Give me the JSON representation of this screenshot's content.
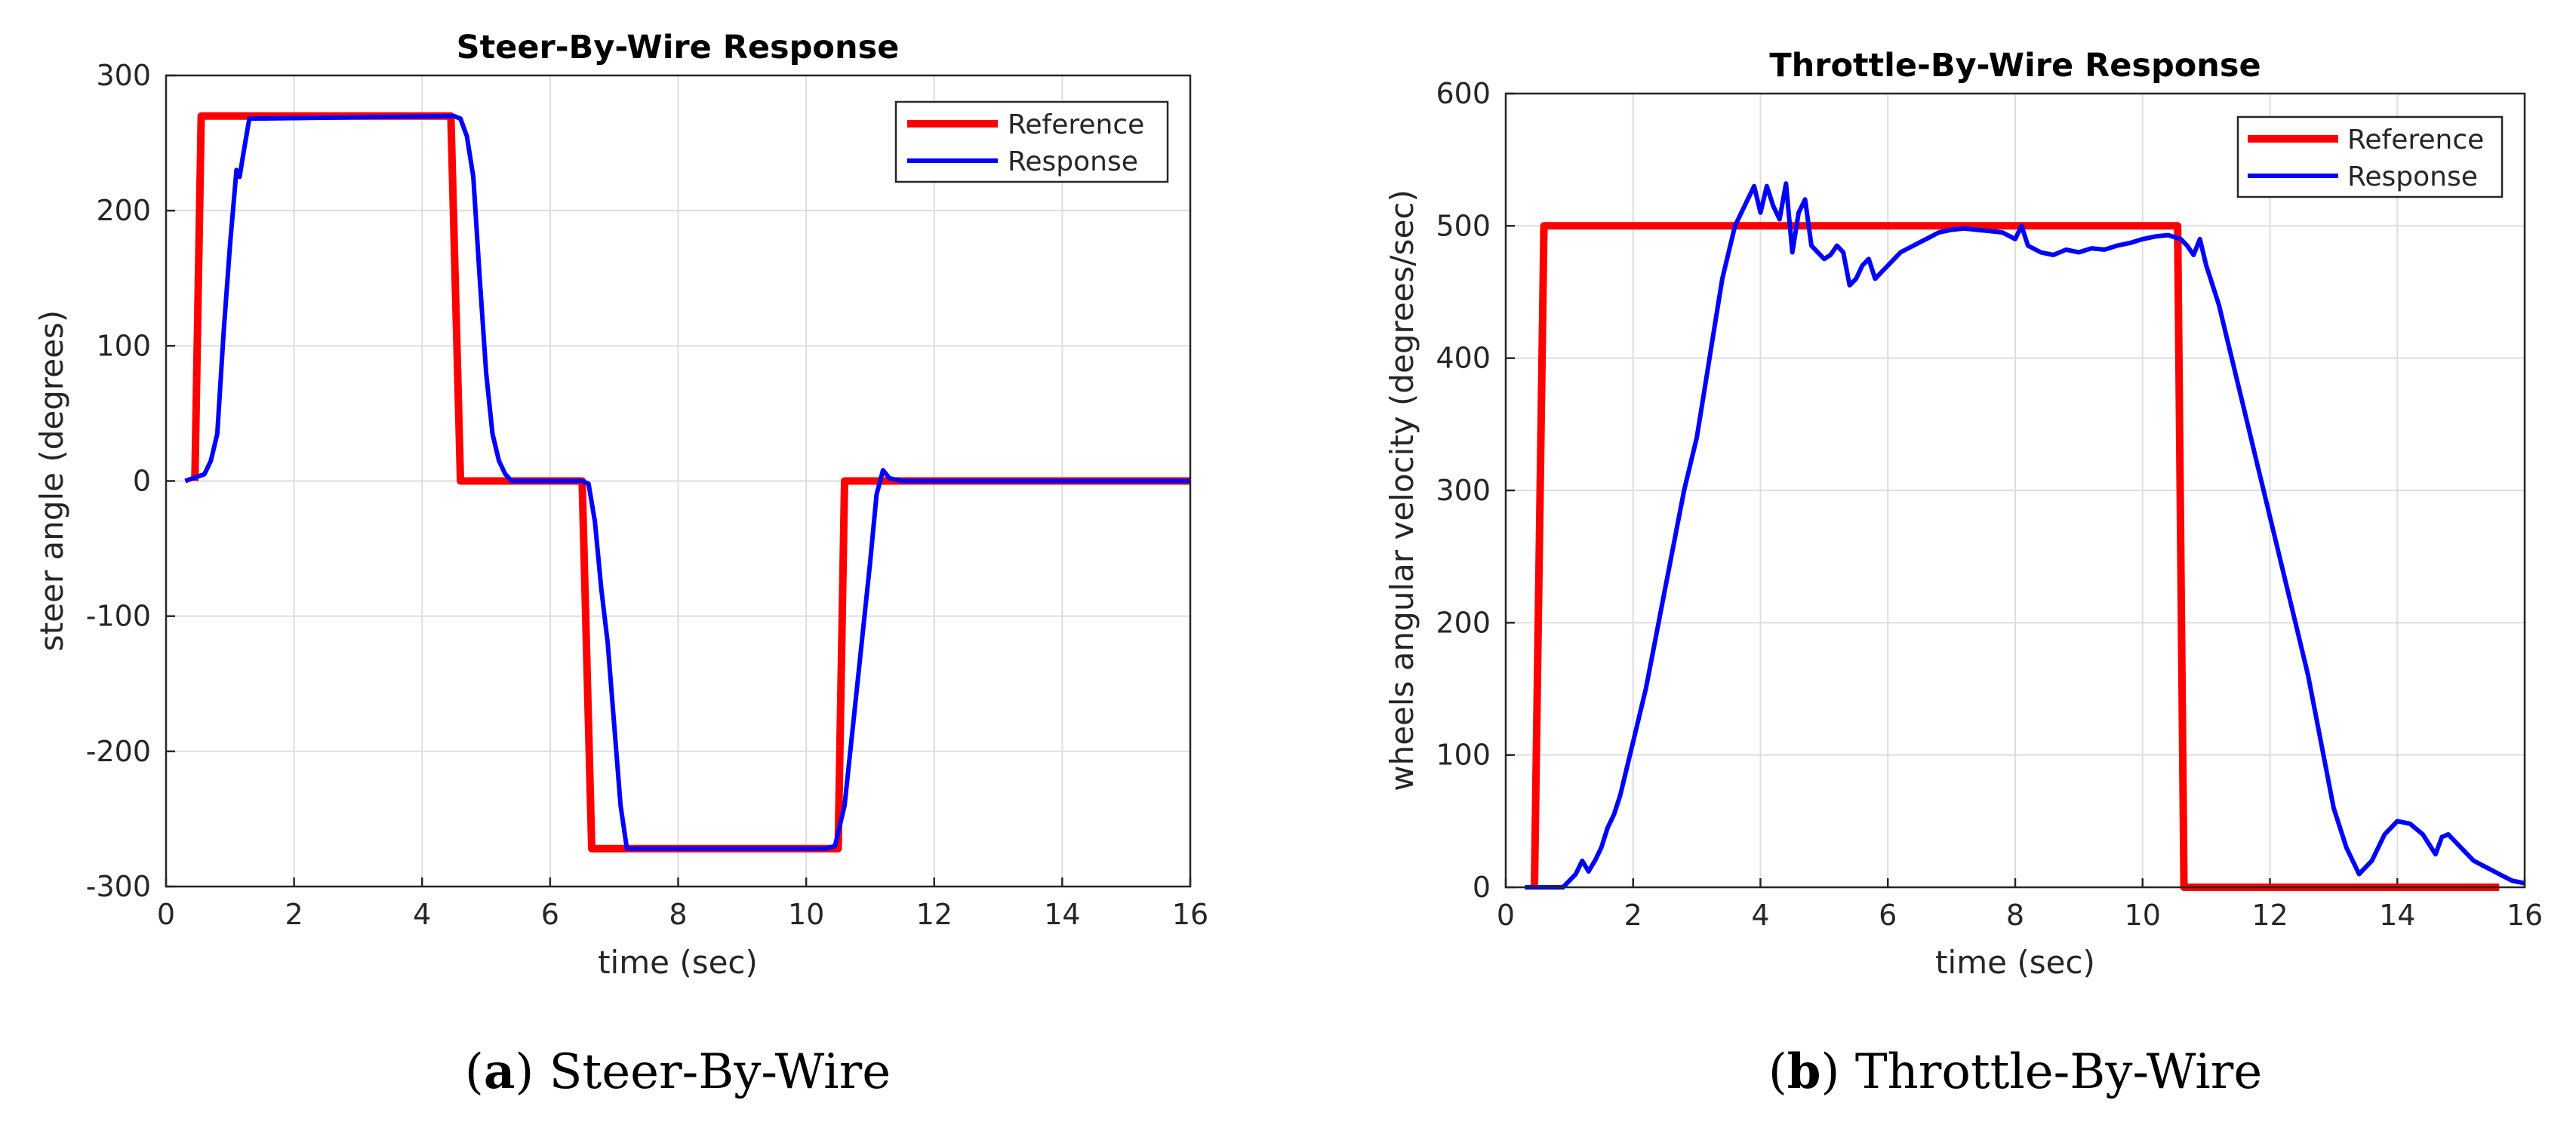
{
  "chart_data": [
    {
      "type": "line",
      "title": "Steer-By-Wire Response",
      "xlabel": "time (sec)",
      "ylabel": "steer angle (degrees)",
      "xlim": [
        0,
        16
      ],
      "ylim": [
        -300,
        300
      ],
      "xticks": [
        "0",
        "2",
        "4",
        "6",
        "8",
        "10",
        "12",
        "14",
        "16"
      ],
      "yticks": [
        "300",
        "200",
        "100",
        "0",
        "-100",
        "-200",
        "-300"
      ],
      "grid": true,
      "legend": "top-right",
      "series": [
        {
          "name": "Reference",
          "color": "#ff0000",
          "x": [
            0.45,
            0.55,
            4.45,
            4.6,
            6.5,
            6.65,
            10.5,
            10.6,
            16
          ],
          "y": [
            0,
            270,
            270,
            0,
            0,
            -272,
            -272,
            0,
            0
          ]
        },
        {
          "name": "Response",
          "color": "#0000ff",
          "x": [
            0.3,
            0.6,
            0.7,
            0.8,
            0.9,
            1.0,
            1.1,
            1.15,
            1.2,
            1.3,
            4.5,
            4.6,
            4.7,
            4.8,
            4.9,
            5.0,
            5.1,
            5.2,
            5.3,
            5.4,
            6.4,
            6.5,
            6.6,
            6.7,
            6.8,
            6.9,
            7.0,
            7.1,
            7.2,
            10.3,
            10.45,
            10.6,
            10.8,
            11.0,
            11.1,
            11.2,
            11.3,
            11.5,
            16.0
          ],
          "y": [
            0,
            5,
            15,
            35,
            110,
            175,
            230,
            225,
            240,
            268,
            270,
            268,
            255,
            225,
            150,
            80,
            35,
            15,
            5,
            0,
            0,
            0,
            -2,
            -30,
            -80,
            -120,
            -180,
            -240,
            -272,
            -272,
            -270,
            -240,
            -150,
            -60,
            -10,
            8,
            2,
            0,
            0
          ]
        }
      ]
    },
    {
      "type": "line",
      "title": "Throttle-By-Wire Response",
      "xlabel": "time (sec)",
      "ylabel": "wheels angular velocity (degrees/sec)",
      "xlim": [
        0,
        16
      ],
      "ylim": [
        0,
        600
      ],
      "xticks": [
        "0",
        "2",
        "4",
        "6",
        "8",
        "10",
        "12",
        "14",
        "16"
      ],
      "yticks": [
        "600",
        "500",
        "400",
        "300",
        "200",
        "100",
        "0"
      ],
      "grid": true,
      "legend": "top-right",
      "series": [
        {
          "name": "Reference",
          "color": "#ff0000",
          "x": [
            0.45,
            0.6,
            10.55,
            10.65,
            15.6
          ],
          "y": [
            0,
            500,
            500,
            0,
            0
          ]
        },
        {
          "name": "Response",
          "color": "#0000ff",
          "x": [
            0.3,
            0.9,
            1.0,
            1.1,
            1.2,
            1.3,
            1.4,
            1.5,
            1.6,
            1.7,
            1.8,
            1.9,
            2.0,
            2.1,
            2.2,
            2.3,
            2.4,
            2.5,
            2.6,
            2.7,
            2.8,
            2.9,
            3.0,
            3.1,
            3.2,
            3.3,
            3.4,
            3.5,
            3.6,
            3.7,
            3.8,
            3.9,
            4.0,
            4.1,
            4.2,
            4.3,
            4.4,
            4.5,
            4.6,
            4.7,
            4.8,
            4.9,
            5.0,
            5.1,
            5.2,
            5.3,
            5.4,
            5.5,
            5.6,
            5.7,
            5.8,
            5.9,
            6.0,
            6.2,
            6.4,
            6.6,
            6.8,
            7.0,
            7.2,
            7.4,
            7.6,
            7.8,
            8.0,
            8.1,
            8.2,
            8.4,
            8.6,
            8.8,
            9.0,
            9.2,
            9.4,
            9.6,
            9.8,
            10.0,
            10.2,
            10.4,
            10.6,
            10.7,
            10.8,
            10.9,
            11.0,
            11.1,
            11.2,
            11.3,
            11.4,
            11.5,
            11.6,
            11.7,
            11.8,
            11.9,
            12.0,
            12.2,
            12.4,
            12.6,
            12.8,
            13.0,
            13.2,
            13.4,
            13.6,
            13.8,
            14.0,
            14.2,
            14.4,
            14.6,
            14.7,
            14.8,
            15.0,
            15.2,
            15.4,
            15.6,
            15.8,
            16.0
          ],
          "y": [
            0,
            0,
            5,
            10,
            20,
            12,
            20,
            30,
            45,
            55,
            70,
            90,
            110,
            130,
            150,
            175,
            200,
            225,
            250,
            275,
            300,
            320,
            340,
            370,
            400,
            430,
            460,
            480,
            500,
            510,
            520,
            530,
            510,
            530,
            515,
            505,
            532,
            480,
            510,
            520,
            485,
            480,
            475,
            478,
            485,
            480,
            455,
            460,
            470,
            475,
            460,
            465,
            470,
            480,
            485,
            490,
            495,
            497,
            498,
            497,
            496,
            495,
            490,
            500,
            485,
            480,
            478,
            482,
            480,
            483,
            482,
            485,
            487,
            490,
            492,
            493,
            490,
            485,
            478,
            490,
            470,
            455,
            440,
            420,
            400,
            380,
            360,
            340,
            320,
            300,
            280,
            240,
            200,
            160,
            110,
            60,
            30,
            10,
            20,
            40,
            50,
            48,
            40,
            25,
            38,
            40,
            30,
            20,
            15,
            10,
            5,
            3
          ]
        }
      ]
    }
  ],
  "captions": [
    {
      "label": "a",
      "text": " Steer-By-Wire"
    },
    {
      "label": "b",
      "text": " Throttle-By-Wire"
    }
  ]
}
